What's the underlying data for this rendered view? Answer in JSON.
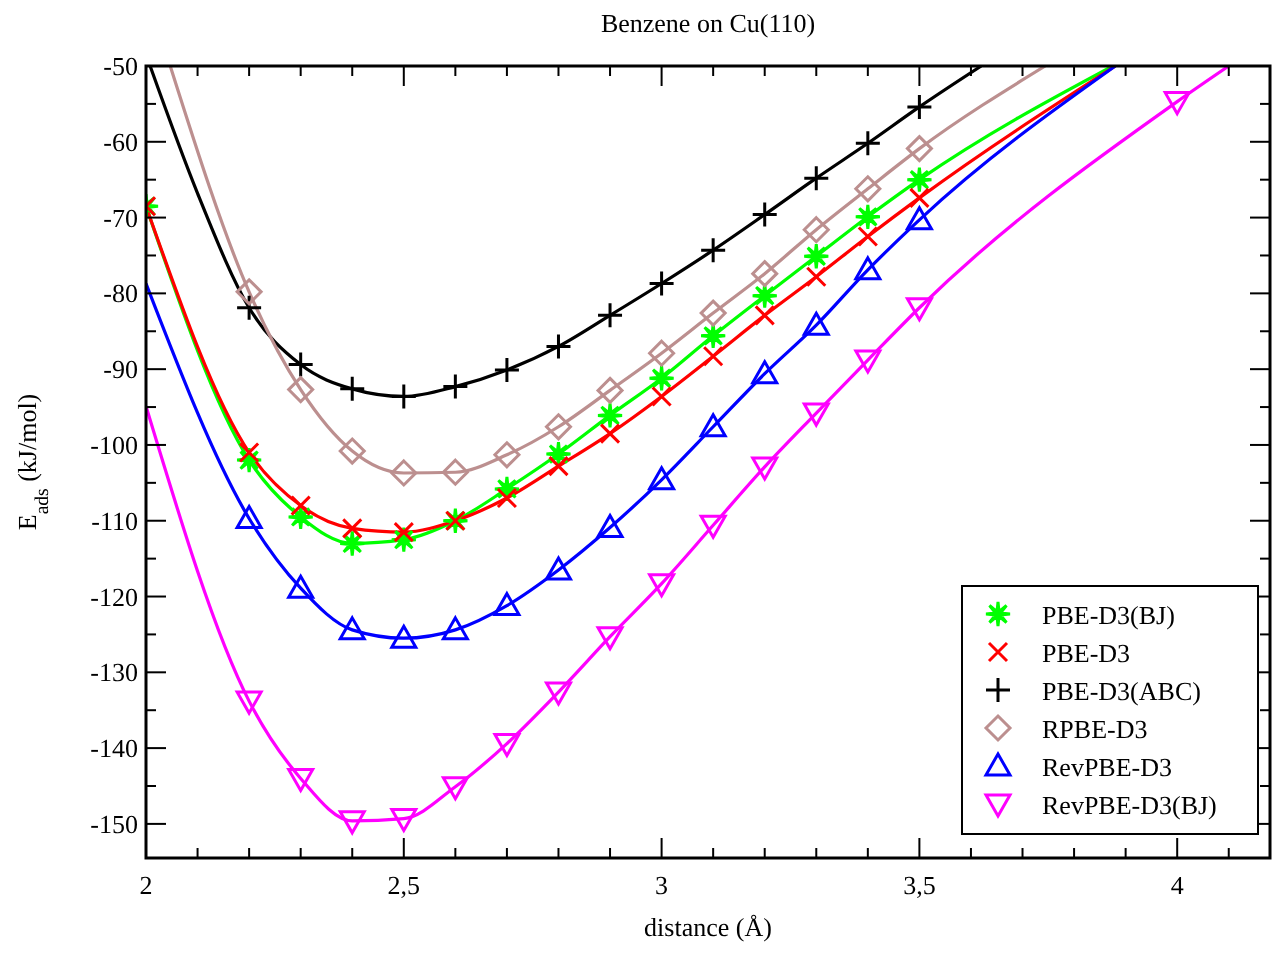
{
  "chart_data": {
    "type": "line",
    "title": "Benzene on Cu(110)",
    "xlabel": "distance (Å)",
    "ylabel": "E$_{ads}$ (kJ/mol)",
    "xlim": [
      2,
      4.18
    ],
    "ylim": [
      -154.5,
      -50
    ],
    "xticks": [
      2,
      {
        "value": 2.1,
        "label": null
      },
      {
        "value": 2.2,
        "label": null
      },
      {
        "value": 2.3,
        "label": null
      },
      {
        "value": 2.4,
        "label": null
      },
      {
        "value": 2.5,
        "label": "2,5"
      },
      {
        "value": 2.6,
        "label": null
      },
      {
        "value": 2.7,
        "label": null
      },
      {
        "value": 2.8,
        "label": null
      },
      {
        "value": 2.9,
        "label": null
      },
      3,
      {
        "value": 3.1,
        "label": null
      },
      {
        "value": 3.2,
        "label": null
      },
      {
        "value": 3.3,
        "label": null
      },
      {
        "value": 3.4,
        "label": null
      },
      {
        "value": 3.5,
        "label": "3,5"
      },
      {
        "value": 3.6,
        "label": null
      },
      {
        "value": 3.7,
        "label": null
      },
      {
        "value": 3.8,
        "label": null
      },
      {
        "value": 3.9,
        "label": null
      },
      4,
      {
        "value": 4.1,
        "label": null
      }
    ],
    "yticks": [
      -50,
      {
        "value": -55,
        "label": null
      },
      -60,
      {
        "value": -65,
        "label": null
      },
      -70,
      {
        "value": -75,
        "label": null
      },
      -80,
      {
        "value": -85,
        "label": null
      },
      -90,
      {
        "value": -95,
        "label": null
      },
      -100,
      {
        "value": -105,
        "label": null
      },
      -110,
      {
        "value": -115,
        "label": null
      },
      -120,
      {
        "value": -125,
        "label": null
      },
      -130,
      {
        "value": -135,
        "label": null
      },
      -140,
      {
        "value": -145,
        "label": null
      },
      -150
    ],
    "legend": "bottom right",
    "grid": false,
    "series": [
      {
        "marker": "none",
        "color": "#00ff00",
        "x": [
          2,
          2.2,
          2.3,
          2.4,
          2.5,
          2.6,
          2.7,
          2.8,
          2.9,
          3.0,
          3.1,
          3.2,
          3.3,
          3.4,
          3.5,
          3.875
        ],
        "values": [
          -68.5,
          -102,
          -109.5,
          -113,
          -112.5,
          -110,
          -105.8,
          -101.2,
          -96.1,
          -91.2,
          -85.6,
          -80.3,
          -75.1,
          -69.9,
          -65,
          -50
        ]
      },
      {
        "marker": "none",
        "color": "#ff0000",
        "x": [
          2,
          2.2,
          2.3,
          2.4,
          2.5,
          2.6,
          2.7,
          2.8,
          2.9,
          3.0,
          3.1,
          3.2,
          3.3,
          3.4,
          3.5,
          3.88
        ],
        "values": [
          -68.5,
          -101,
          -108,
          -111,
          -111.5,
          -110,
          -107,
          -102.8,
          -98.5,
          -93.6,
          -88.3,
          -82.9,
          -77.8,
          -72.5,
          -67.4,
          -50
        ]
      },
      {
        "marker": "none",
        "color": "#000000",
        "x": [
          2.008,
          2.1,
          2.2,
          2.3,
          2.4,
          2.5,
          2.6,
          2.7,
          2.8,
          2.9,
          3.0,
          3.1,
          3.2,
          3.3,
          3.4,
          3.5,
          3.62
        ],
        "values": [
          -50,
          -66.8,
          -81.9,
          -89.4,
          -92.6,
          -93.6,
          -92.3,
          -90.1,
          -87,
          -82.9,
          -78.7,
          -74.3,
          -69.6,
          -64.8,
          -60.2,
          -55.4,
          -50
        ]
      },
      {
        "marker": "none",
        "color": "#bc8f8f",
        "x": [
          2.047,
          2.2,
          2.3,
          2.4,
          2.5,
          2.6,
          2.7,
          2.8,
          2.9,
          3.0,
          3.1,
          3.2,
          3.3,
          3.4,
          3.5,
          3.744
        ],
        "values": [
          -50,
          -79.8,
          -92.7,
          -100.8,
          -103.7,
          -103.6,
          -101.3,
          -97.6,
          -92.8,
          -87.9,
          -82.6,
          -77.4,
          -71.6,
          -66.2,
          -60.9,
          -50
        ]
      },
      {
        "marker": "none",
        "color": "#0000ff",
        "x": [
          2,
          2.2,
          2.3,
          2.4,
          2.5,
          2.6,
          2.7,
          2.8,
          2.9,
          3.0,
          3.1,
          3.2,
          3.3,
          3.4,
          3.5,
          3.88
        ],
        "values": [
          -78.7,
          -109.7,
          -118.9,
          -124.4,
          -125.5,
          -124.4,
          -121.2,
          -116.5,
          -110.9,
          -104.6,
          -97.6,
          -90.6,
          -84.2,
          -76.9,
          -70.3,
          -50
        ]
      },
      {
        "marker": "none",
        "color": "#ff00ff",
        "x": [
          2,
          2.2,
          2.3,
          2.4,
          2.5,
          2.6,
          2.7,
          2.8,
          2.9,
          3.0,
          3.1,
          3.2,
          3.3,
          3.4,
          3.5,
          4.0,
          4.1
        ],
        "values": [
          -94.9,
          -133.8,
          -144,
          -149.6,
          -149.3,
          -145.1,
          -139.4,
          -132.6,
          -125.3,
          -118.3,
          -110.6,
          -102.9,
          -95.8,
          -88.8,
          -81.9,
          -54.7,
          -50
        ]
      },
      {
        "type": "scatter",
        "name": "PBE-D3(BJ)",
        "marker": "star",
        "color": "#00ff00",
        "x": [
          2,
          2.2,
          2.3,
          2.4,
          2.5,
          2.6,
          2.7,
          2.8,
          2.9,
          3.0,
          3.1,
          3.2,
          3.3,
          3.4,
          3.5
        ],
        "values": [
          -68.5,
          -102,
          -109.5,
          -113,
          -112.5,
          -110,
          -105.8,
          -101.2,
          -96.1,
          -91.2,
          -85.6,
          -80.3,
          -75.1,
          -69.9,
          -65
        ]
      },
      {
        "type": "scatter",
        "name": "PBE-D3",
        "marker": "x",
        "color": "#ff0000",
        "x": [
          2,
          2.2,
          2.3,
          2.4,
          2.5,
          2.6,
          2.7,
          2.8,
          2.9,
          3.0,
          3.1,
          3.2,
          3.3,
          3.4,
          3.5
        ],
        "values": [
          -68.5,
          -101,
          -108,
          -111,
          -111.5,
          -110,
          -107,
          -102.8,
          -98.5,
          -93.6,
          -88.3,
          -82.9,
          -77.8,
          -72.5,
          -67.4
        ]
      },
      {
        "type": "scatter",
        "name": "PBE-D3(ABC)",
        "marker": "cross",
        "color": "#000000",
        "x": [
          2.2,
          2.3,
          2.4,
          2.5,
          2.6,
          2.7,
          2.8,
          2.9,
          3.0,
          3.1,
          3.2,
          3.3,
          3.4,
          3.5
        ],
        "values": [
          -81.9,
          -89.4,
          -92.6,
          -93.6,
          -92.3,
          -90.1,
          -87,
          -82.9,
          -78.7,
          -74.3,
          -69.6,
          -64.8,
          -60.2,
          -55.4
        ]
      },
      {
        "type": "scatter",
        "name": "RPBE-D3",
        "marker": "diamond",
        "color": "#bc8f8f",
        "x": [
          2.2,
          2.3,
          2.4,
          2.5,
          2.6,
          2.7,
          2.8,
          2.9,
          3.0,
          3.1,
          3.2,
          3.3,
          3.4,
          3.5
        ],
        "values": [
          -79.8,
          -92.7,
          -100.8,
          -103.7,
          -103.6,
          -101.3,
          -97.6,
          -92.8,
          -87.9,
          -82.6,
          -77.4,
          -71.6,
          -66.2,
          -60.9
        ]
      },
      {
        "type": "scatter",
        "name": "RevPBE-D3",
        "marker": "triangle",
        "color": "#0000ff",
        "x": [
          2.2,
          2.3,
          2.4,
          2.5,
          2.6,
          2.7,
          2.8,
          2.9,
          3.0,
          3.1,
          3.2,
          3.3,
          3.4,
          3.5
        ],
        "values": [
          -109.7,
          -118.9,
          -124.4,
          -125.5,
          -124.4,
          -121.2,
          -116.5,
          -110.9,
          -104.6,
          -97.6,
          -90.6,
          -84.2,
          -76.9,
          -70.3
        ]
      },
      {
        "type": "scatter",
        "name": "RevPBE-D3(BJ)",
        "marker": "triangle-down",
        "color": "#ff00ff",
        "x": [
          2.2,
          2.3,
          2.4,
          2.5,
          2.6,
          2.7,
          2.8,
          2.9,
          3.0,
          3.1,
          3.2,
          3.3,
          3.4,
          3.5,
          4.0
        ],
        "values": [
          -133.8,
          -144,
          -149.6,
          -149.3,
          -145.1,
          -139.4,
          -132.6,
          -125.3,
          -118.3,
          -110.6,
          -102.9,
          -95.8,
          -88.8,
          -81.9,
          -54.7
        ]
      }
    ]
  }
}
